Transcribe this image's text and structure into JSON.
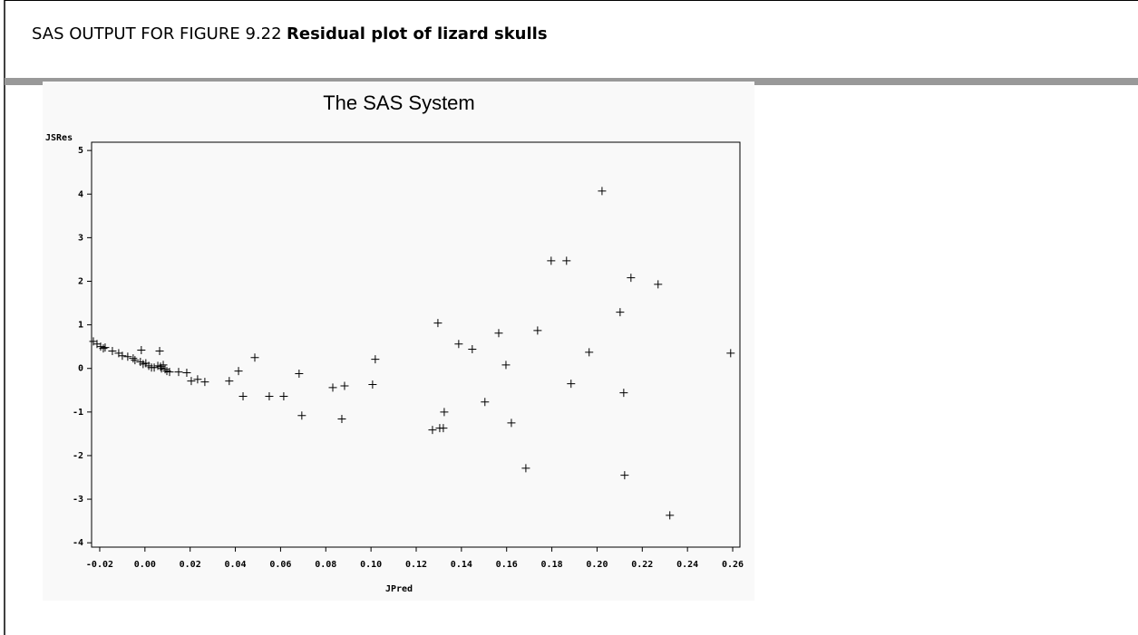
{
  "header": {
    "label": "SAS OUTPUT FOR FIGURE 9.22",
    "title": "Residual plot of lizard skulls"
  },
  "chart_data": {
    "type": "scatter",
    "title": "The SAS System",
    "x_label": "JPred",
    "y_label": "JSRes",
    "color": "#000000",
    "x": [
      -0.0228,
      -0.0212,
      -0.0196,
      -0.0184,
      -0.0176,
      -0.0144,
      -0.0116,
      -0.01,
      -0.0076,
      -0.0052,
      -0.0044,
      -0.002,
      -0.0016,
      -0.0008,
      0.0004,
      0.0017,
      0.0029,
      0.0041,
      0.0057,
      0.0065,
      0.0069,
      0.0073,
      0.0081,
      0.0089,
      0.0097,
      0.0109,
      0.0149,
      0.0185,
      0.0205,
      0.0233,
      0.0265,
      0.0373,
      0.0414,
      0.0434,
      0.0486,
      0.055,
      0.0614,
      0.0682,
      0.0694,
      0.0831,
      0.0871,
      0.0883,
      0.1007,
      0.1019,
      0.1272,
      0.1296,
      0.1304,
      0.132,
      0.1324,
      0.1388,
      0.1448,
      0.1504,
      0.1565,
      0.1597,
      0.1621,
      0.1685,
      0.1737,
      0.1797,
      0.1865,
      0.1885,
      0.1965,
      0.2022,
      0.2102,
      0.2118,
      0.2122,
      0.215,
      0.227,
      0.2322,
      0.2591
    ],
    "values": [
      0.62,
      0.56,
      0.5,
      0.46,
      0.48,
      0.4,
      0.35,
      0.29,
      0.27,
      0.23,
      0.19,
      0.15,
      0.42,
      0.1,
      0.12,
      0.06,
      0.02,
      0.02,
      0.06,
      0.4,
      0.04,
      0.0,
      0.08,
      -0.02,
      -0.06,
      -0.08,
      -0.08,
      -0.1,
      -0.29,
      -0.25,
      -0.31,
      -0.29,
      -0.06,
      -0.64,
      0.25,
      -0.64,
      -0.64,
      -0.12,
      -1.08,
      -0.44,
      -1.16,
      -0.4,
      -0.37,
      0.21,
      -1.41,
      1.04,
      -1.37,
      -1.37,
      -1.0,
      0.56,
      0.44,
      -0.77,
      0.81,
      0.08,
      -1.25,
      -2.29,
      0.87,
      2.47,
      2.47,
      -0.35,
      0.37,
      4.07,
      1.29,
      -0.56,
      -2.45,
      2.08,
      1.93,
      -3.37,
      0.35
    ],
    "xlim": [
      -0.0236,
      0.2632
    ],
    "xticks": [
      -0.02,
      {
        "value": 0,
        "label": "0.00"
      },
      0.02,
      0.04,
      0.06,
      0.08,
      {
        "value": 0.1,
        "label": "0.10"
      },
      0.12,
      0.14,
      0.16,
      0.18,
      {
        "value": 0.2,
        "label": "0.20"
      },
      0.22,
      0.24,
      0.26
    ],
    "ylim": [
      -4.1,
      5.19
    ],
    "yticks": [
      -4,
      -3,
      -2,
      -1,
      0,
      1,
      2,
      3,
      4,
      5
    ]
  }
}
